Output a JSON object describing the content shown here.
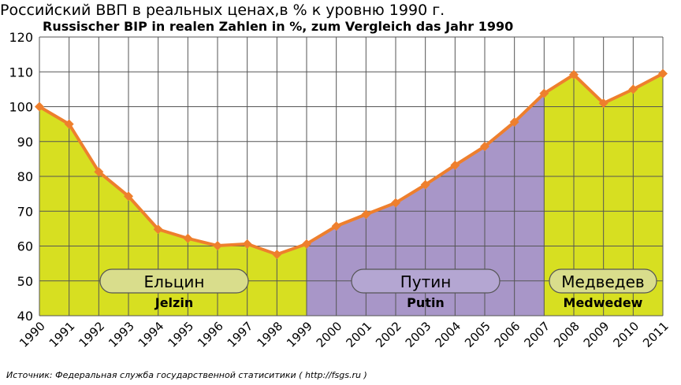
{
  "colors": {
    "line": "#ee7f2d",
    "yeltsin_fill": "#d7df21",
    "putin_fill": "#a896c8",
    "medvedev_fill": "#d7df21",
    "grid": "#555555",
    "label_box_fill": "#d9dd8c",
    "label_box_fill_putin": "#b4a6d2"
  },
  "chart_data": {
    "type": "area",
    "title": "Российский ВВП в реальных ценах,в % к уровню 1990 г.",
    "subtitle": "Russischer BIP in realen Zahlen in %, zum Vergleich das Jahr 1990",
    "x": [
      "1990",
      "1991",
      "1992",
      "1993",
      "1994",
      "1995",
      "1996",
      "1997",
      "1998",
      "1999",
      "2000",
      "2001",
      "2002",
      "2003",
      "2004",
      "2005",
      "2006",
      "2007",
      "2008",
      "2009",
      "2010",
      "2011"
    ],
    "values": [
      100,
      95,
      81.3,
      74.3,
      64.8,
      62.2,
      60.1,
      60.6,
      57.6,
      60.6,
      65.7,
      69.1,
      72.4,
      77.6,
      83.2,
      88.6,
      95.6,
      103.8,
      109.2,
      101.0,
      105.0,
      109.5
    ],
    "ylim": [
      40,
      120
    ],
    "yticks": [
      40,
      50,
      60,
      70,
      80,
      90,
      100,
      110,
      120
    ],
    "grid": true,
    "periods": [
      {
        "label_ru": "Ельцин",
        "label_de": "Jelzin",
        "start": "1990",
        "end": "1999"
      },
      {
        "label_ru": "Путин",
        "label_de": "Putin",
        "start": "1999",
        "end": "2007"
      },
      {
        "label_ru": "Медведев",
        "label_de": "Medwedew",
        "start": "2007",
        "end": "2011"
      }
    ]
  },
  "source": "Источник:  Федеральная служба государственной статиситики ( http://fsgs.ru )"
}
